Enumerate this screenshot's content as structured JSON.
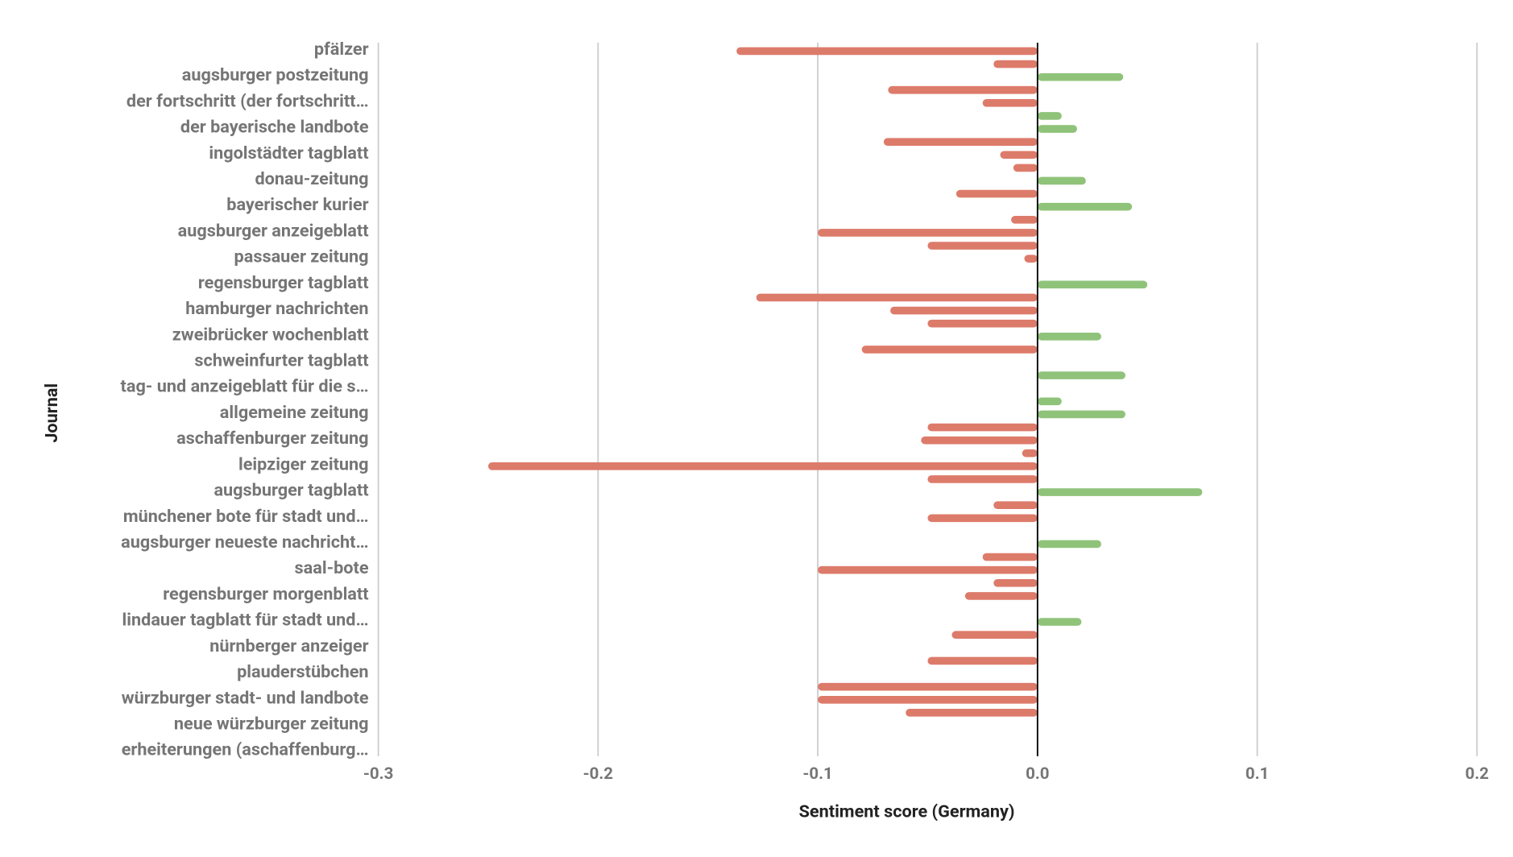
{
  "chart_data": {
    "type": "bar",
    "orientation": "horizontal",
    "x_label": "Sentiment score (Germany)",
    "y_label": "Journal",
    "categories": [
      "pfälzer",
      null,
      "augsburger postzeitung",
      null,
      "der fortschritt (der fortschritt…",
      null,
      "der bayerische landbote",
      null,
      "ingolstädter tagblatt",
      null,
      "donau-zeitung",
      null,
      "bayerischer kurier",
      null,
      "augsburger anzeigeblatt",
      null,
      "passauer zeitung",
      null,
      "regensburger tagblatt",
      null,
      "hamburger nachrichten",
      null,
      "zweibrücker wochenblatt",
      null,
      "schweinfurter tagblatt",
      null,
      "tag- und anzeigeblatt für die s…",
      null,
      "allgemeine zeitung",
      null,
      "aschaffenburger zeitung",
      null,
      "leipziger zeitung",
      null,
      "augsburger tagblatt",
      null,
      "münchener bote für stadt und…",
      null,
      "augsburger neueste nachricht…",
      null,
      "saal-bote",
      null,
      "regensburger morgenblatt",
      null,
      "lindauer tagblatt für stadt und…",
      null,
      "nürnberger anzeiger",
      null,
      "plauderstübchen",
      null,
      "würzburger stadt- und landbote",
      null,
      "neue würzburger zeitung",
      null,
      "erheiterungen (aschaffenburg…"
    ],
    "values": [
      -0.137,
      -0.02,
      0.039,
      -0.068,
      -0.025,
      0.011,
      0.018,
      -0.07,
      -0.017,
      -0.011,
      0.022,
      -0.037,
      0.043,
      -0.012,
      -0.1,
      -0.05,
      -0.006,
      0,
      0.05,
      -0.128,
      -0.067,
      -0.05,
      0.029,
      -0.08,
      0,
      0.04,
      0,
      0.011,
      0.04,
      -0.05,
      -0.053,
      -0.007,
      -0.25,
      -0.05,
      0.075,
      -0.02,
      -0.05,
      0,
      0.029,
      -0.025,
      -0.1,
      -0.02,
      -0.033,
      0,
      0.02,
      -0.039,
      0,
      -0.05,
      0,
      -0.1,
      -0.1,
      -0.06,
      0,
      0,
      0
    ],
    "positive_color": "#8fc37a",
    "negative_color": "#dd7b6a",
    "xlim": [
      -0.3,
      0.2
    ],
    "xticks": [
      -0.3,
      -0.2,
      -0.1,
      {
        "value": 0,
        "label": "0.0"
      },
      0.1,
      0.2
    ],
    "grid": true
  }
}
